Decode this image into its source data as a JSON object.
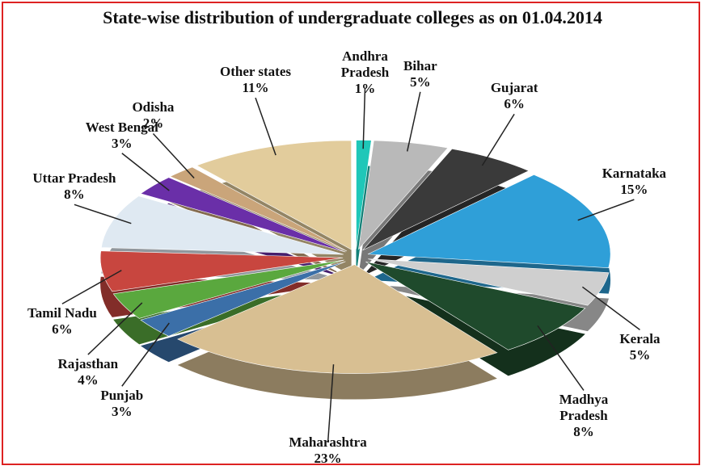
{
  "chart_data": {
    "type": "pie",
    "title": "State-wise distribution of undergraduate colleges as on 01.04.2014",
    "categories": [
      "Andhra Pradesh",
      "Bihar",
      "Gujarat",
      "Karnataka",
      "Kerala",
      "Madhya Pradesh",
      "Maharashtra",
      "Punjab",
      "Rajasthan",
      "Tamil Nadu",
      "Uttar Pradesh",
      "West Bengal",
      "Odisha",
      "Other states"
    ],
    "values": [
      1,
      5,
      6,
      15,
      5,
      8,
      23,
      3,
      4,
      6,
      8,
      3,
      2,
      11
    ],
    "value_labels": [
      "1%",
      "5%",
      "6%",
      "15%",
      "5%",
      "8%",
      "23%",
      "3%",
      "4%",
      "6%",
      "8%",
      "3%",
      "2%",
      "11%"
    ],
    "colors": [
      "#1fc7b8",
      "#b9b9b9",
      "#3a3a3a",
      "#2f9fd8",
      "#cfcfcf",
      "#1f4a2c",
      "#d8bf92",
      "#3b6fa8",
      "#5aa83e",
      "#c8463f",
      "#dfe9f2",
      "#6a2fa8",
      "#caa57a",
      "#e2cc9c"
    ]
  }
}
